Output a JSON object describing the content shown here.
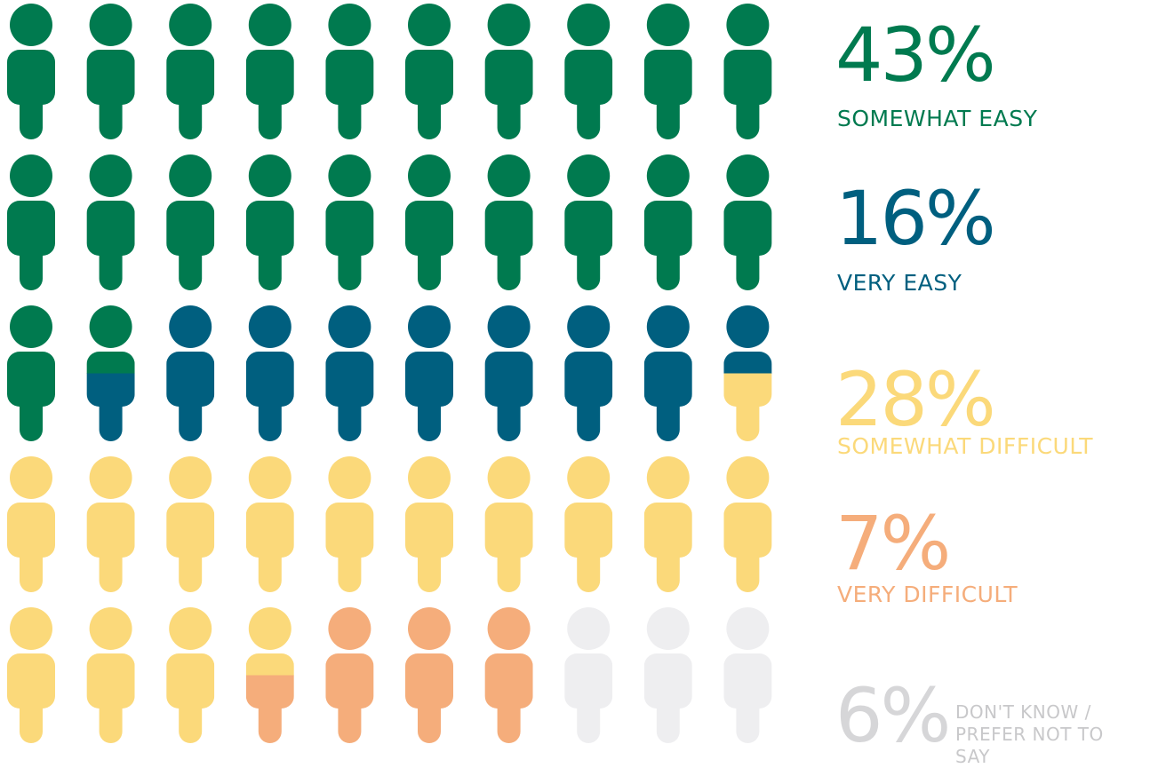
{
  "chart_data": {
    "type": "pictogram",
    "categories": [
      "SOMEWHAT EASY",
      "VERY EASY",
      "SOMEWHAT DIFFICULT",
      "VERY DIFFICULT",
      "DON'T KNOW / PREFER NOT TO SAY"
    ],
    "values": [
      43,
      16,
      28,
      7,
      6
    ],
    "value_labels": [
      "43%",
      "16%",
      "28%",
      "7%",
      "6%"
    ],
    "colors": [
      "#007a4f",
      "#005f7f",
      "#fbd97a",
      "#f5ad7b",
      "#eeeef0"
    ]
  }
}
